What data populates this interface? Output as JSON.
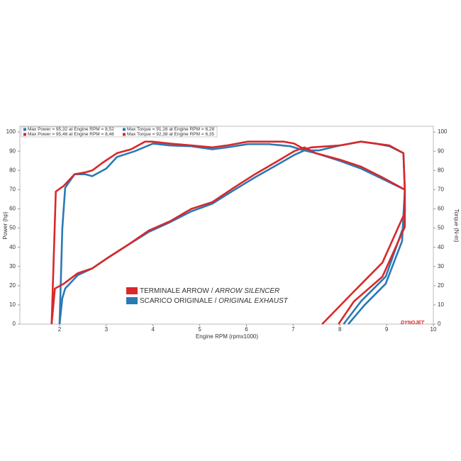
{
  "chart_data": {
    "type": "line",
    "x_label": "Engine RPM (rpmx1000)",
    "y_label": "Power (hp)",
    "y2_label": "Torque (N-m)",
    "logo": "DYNOJET",
    "stats": [
      {
        "text": "Max Power = 95,32 at Engine RPM = 8,52",
        "color": "#2a79b5"
      },
      {
        "text": "Max Torque = 91,16 at Engine RPM = 6,28",
        "color": "#2a79b5"
      },
      {
        "text": "Max Power = 95,46 at Engine RPM = 8,48",
        "color": "#d8282a"
      },
      {
        "text": "Max Torque = 92,38 at Engine RPM = 6,35",
        "color": "#d8282a"
      }
    ],
    "legend": [
      {
        "text": "TERMINALE ARROW /",
        "text_italic": "ARROW SILENCER",
        "color": "#d8282a"
      },
      {
        "text": "SCARICO ORIGINALE /",
        "text_italic": "ORIGINAL EXHAUST",
        "color": "#2a79b5"
      }
    ],
    "xlim": [
      1.15,
      10
    ],
    "xticks": [
      2,
      3,
      4,
      5,
      6,
      7,
      8,
      9,
      10
    ],
    "ylim": [
      0,
      103
    ],
    "yticks": [
      0,
      10,
      20,
      30,
      40,
      50,
      60,
      70,
      80,
      90,
      100
    ],
    "y2lim": [
      0,
      103
    ],
    "y2ticks": [
      0,
      10,
      20,
      30,
      40,
      50,
      60,
      70,
      80,
      90,
      100
    ],
    "grid": false,
    "series": [
      {
        "color": "#2a79b5",
        "axis": "y",
        "x": [
          2.0,
          2.06,
          2.12,
          2.32,
          2.55,
          2.7,
          3.0,
          3.23,
          3.61,
          4.0,
          4.36,
          4.82,
          5.27,
          5.58,
          6.03,
          6.48,
          6.94,
          7.24,
          7.55,
          8.0,
          8.45,
          8.76,
          9.06,
          9.36,
          9.39,
          9.36,
          8.98,
          8.45,
          8.08
        ],
        "values": [
          0,
          50,
          71,
          78,
          78,
          77,
          81,
          87,
          90,
          94,
          93,
          92.6,
          91,
          92,
          93.7,
          93.7,
          92.6,
          90.4,
          90.4,
          93,
          95,
          94,
          92.6,
          89,
          70,
          50.6,
          24.7,
          11.8,
          0
        ]
      },
      {
        "color": "#2a79b5",
        "axis": "y2",
        "x": [
          2.0,
          2.06,
          2.12,
          2.39,
          2.7,
          3.0,
          3.45,
          3.91,
          4.36,
          4.82,
          5.27,
          5.73,
          6.18,
          6.64,
          7.02,
          7.24,
          7.48,
          8.0,
          8.45,
          8.91,
          9.39,
          9.33,
          8.98,
          8.53,
          8.18
        ],
        "values": [
          0,
          13.6,
          18.5,
          25.5,
          29,
          34,
          41,
          48,
          53,
          58.7,
          62.7,
          69.7,
          76.4,
          82.7,
          88,
          90.4,
          89,
          85,
          81,
          75.6,
          70,
          43.2,
          21,
          10,
          0
        ]
      },
      {
        "color": "#d8282a",
        "axis": "y",
        "x": [
          1.83,
          1.92,
          2.09,
          2.32,
          2.55,
          2.7,
          2.92,
          3.23,
          3.53,
          3.83,
          3.98,
          4.36,
          4.82,
          5.27,
          5.58,
          6.03,
          6.33,
          6.79,
          7.02,
          7.24,
          7.39,
          8.0,
          8.45,
          8.76,
          9.06,
          9.36,
          9.39,
          9.39,
          8.91,
          8.3,
          7.62
        ],
        "values": [
          0,
          69,
          72,
          78,
          79,
          80,
          84,
          89,
          91,
          95,
          95,
          94,
          93,
          92,
          93,
          95,
          95,
          95,
          94,
          91,
          92,
          93,
          95,
          94,
          93,
          89,
          70,
          58,
          32,
          17,
          0
        ]
      },
      {
        "color": "#d8282a",
        "axis": "y2",
        "x": [
          1.83,
          1.9,
          2.09,
          2.39,
          2.7,
          3.0,
          3.45,
          3.91,
          4.36,
          4.82,
          5.27,
          5.73,
          6.18,
          6.64,
          7.02,
          7.24,
          7.48,
          8.0,
          8.45,
          8.91,
          9.39,
          9.39,
          8.91,
          8.3,
          7.97
        ],
        "values": [
          0,
          18.5,
          21,
          26.5,
          29,
          34,
          41,
          48.7,
          53.5,
          60,
          63.5,
          71,
          78,
          84.5,
          90,
          92,
          89,
          85.6,
          82,
          76.4,
          70,
          50.6,
          24.7,
          11.8,
          0
        ]
      }
    ]
  }
}
